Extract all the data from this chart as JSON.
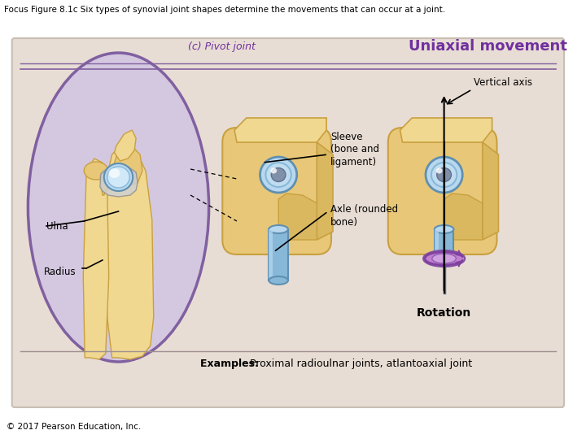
{
  "title_text": "Focus Figure 8.1c Six types of synovial joint shapes determine the movements that can occur at a joint.",
  "copyright_text": "© 2017 Pearson Education, Inc.",
  "panel_bg": "#e8ddd4",
  "panel_border": "#c8beb4",
  "oval_bg": "#d4c8e0",
  "oval_border": "#8060a0",
  "pivot_joint_label": "(c) Pivot joint",
  "pivot_joint_color": "#7030a0",
  "uniaxial_label": "Uniaxial movement",
  "uniaxial_color": "#7030a0",
  "sleeve_label": "Sleeve\n(bone and\nligament)",
  "axle_label": "Axle (rounded\nbone)",
  "vertical_axis_label": "Vertical axis",
  "rotation_label": "Rotation",
  "examples_text": "Examples: Proximal radioulnar joints, atlantoaxial joint",
  "examples_bold": "Examples:",
  "ulna_label": "Ulna",
  "radius_label": "Radius",
  "bone_color": "#e8c878",
  "bone_mid": "#dab860",
  "bone_dark": "#c8a040",
  "bone_light": "#f0d890",
  "sleeve_color_light": "#b8d8f0",
  "sleeve_color_mid": "#88b8d8",
  "sleeve_color_dark": "#6090b0",
  "title_fontsize": 7.5,
  "copyright_fontsize": 7.5,
  "label_fontsize": 9,
  "small_fontsize": 8.5,
  "header_fontsize": 13
}
